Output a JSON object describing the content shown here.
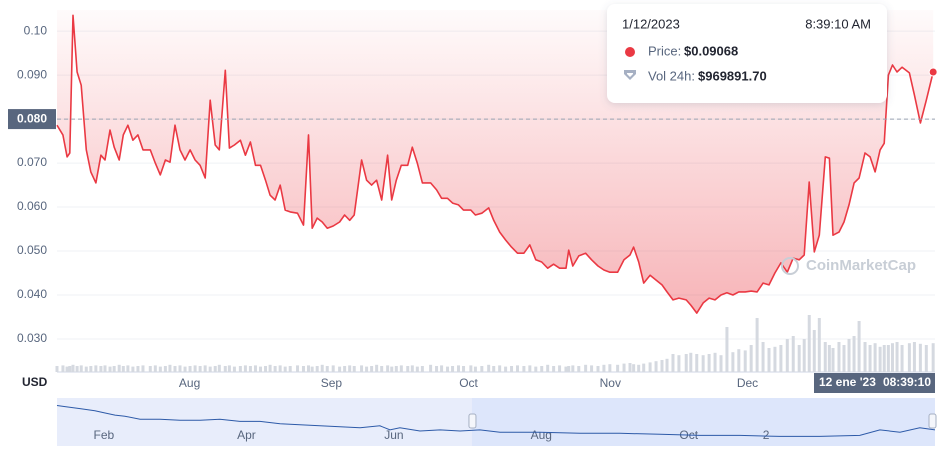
{
  "chart_data": {
    "type": "line",
    "series": [
      {
        "color": "#ea3943",
        "x": [
          2.0,
          3.3,
          4.2,
          4.8,
          5.5,
          6.4,
          7.3,
          8.4,
          9.4,
          10.5,
          11.6,
          12.5,
          13.6,
          14.5,
          15.6,
          16.5,
          17.5,
          18.6,
          19.7,
          20.8,
          22.4,
          23.5,
          24.6,
          25.7,
          26.7,
          27.8,
          28.9,
          30.0,
          31.1,
          32.2,
          33.3,
          34.4,
          35.5,
          36.6,
          37.5,
          38.8,
          39.7,
          40.8,
          42.1,
          43.2,
          44.3,
          45.4,
          46.5,
          47.6,
          48.6,
          49.7,
          50.8,
          51.9,
          53.0,
          54.6,
          55.9,
          57.0,
          57.8,
          58.9,
          60.0,
          61.1,
          62.4,
          63.8,
          64.9,
          66.0,
          67.0,
          68.6,
          69.7,
          70.8,
          71.9,
          73.0,
          74.3,
          75.2,
          76.2,
          77.3,
          78.7,
          79.7,
          80.8,
          81.9,
          83.7,
          85.0,
          86.1,
          87.4,
          88.5,
          89.8,
          90.9,
          92.5,
          93.5,
          94.9,
          96.4,
          97.5,
          98.8,
          100.1,
          101.4,
          102.7,
          104.1,
          105.4,
          106.7,
          108.0,
          109.3,
          110.6,
          111.9,
          113.3,
          113.9,
          114.8,
          116.1,
          117.6,
          118.9,
          120.3,
          121.6,
          122.9,
          124.6,
          126.0,
          127.3,
          128.1,
          129.2,
          130.3,
          131.7,
          133.0,
          134.3,
          135.4,
          136.7,
          138.0,
          139.6,
          140.6,
          141.9,
          143.3,
          144.6,
          145.9,
          147.2,
          148.5,
          149.8,
          151.1,
          152.5,
          153.8,
          155.1,
          156.4,
          157.7,
          159.0,
          160.3,
          161.7,
          163.0,
          164.3,
          165.4,
          166.5,
          167.6,
          168.7,
          170.0,
          170.9,
          171.7,
          173.0,
          174.1,
          175.2,
          176.3,
          177.4,
          178.7,
          179.8,
          180.9,
          182.0,
          182.9,
          183.8,
          184.7,
          185.7,
          186.8,
          188.4,
          189.5,
          190.8,
          192.1,
          193.6
        ],
        "values": [
          0.0786,
          0.0764,
          0.0714,
          0.0723,
          0.1036,
          0.0907,
          0.0877,
          0.073,
          0.068,
          0.0655,
          0.0718,
          0.0707,
          0.0775,
          0.0736,
          0.0707,
          0.0764,
          0.0786,
          0.0752,
          0.0764,
          0.073,
          0.073,
          0.07,
          0.0673,
          0.0707,
          0.0702,
          0.0786,
          0.073,
          0.0707,
          0.073,
          0.0707,
          0.0695,
          0.0666,
          0.0843,
          0.0741,
          0.073,
          0.0911,
          0.0734,
          0.0741,
          0.0752,
          0.0718,
          0.0748,
          0.0695,
          0.0695,
          0.0661,
          0.0627,
          0.0616,
          0.065,
          0.0593,
          0.0589,
          0.0586,
          0.0559,
          0.0764,
          0.0552,
          0.0575,
          0.0566,
          0.0552,
          0.0557,
          0.0566,
          0.0582,
          0.057,
          0.0582,
          0.0707,
          0.0661,
          0.065,
          0.0661,
          0.0616,
          0.0718,
          0.0616,
          0.0661,
          0.0695,
          0.0695,
          0.0736,
          0.07,
          0.0655,
          0.0655,
          0.0639,
          0.062,
          0.062,
          0.0609,
          0.0605,
          0.0593,
          0.0593,
          0.0582,
          0.0586,
          0.0598,
          0.057,
          0.0543,
          0.0525,
          0.0509,
          0.0495,
          0.0495,
          0.0514,
          0.048,
          0.0475,
          0.0461,
          0.047,
          0.0461,
          0.0461,
          0.0502,
          0.0466,
          0.0489,
          0.0495,
          0.048,
          0.0466,
          0.0457,
          0.0452,
          0.0452,
          0.048,
          0.0491,
          0.0509,
          0.0475,
          0.0427,
          0.0445,
          0.0434,
          0.0423,
          0.0407,
          0.0389,
          0.0393,
          0.0389,
          0.0377,
          0.0359,
          0.0382,
          0.0393,
          0.0389,
          0.04,
          0.0405,
          0.04,
          0.0407,
          0.0407,
          0.0409,
          0.0407,
          0.0427,
          0.0423,
          0.045,
          0.0473,
          0.0452,
          0.0484,
          0.048,
          0.0491,
          0.0657,
          0.0498,
          0.0536,
          0.0714,
          0.0711,
          0.0536,
          0.0543,
          0.0566,
          0.0605,
          0.0655,
          0.0666,
          0.0723,
          0.0714,
          0.068,
          0.073,
          0.0745,
          0.09,
          0.0923,
          0.0907,
          0.0918,
          0.0905,
          0.0855,
          0.0791,
          0.0843,
          0.0907
        ]
      }
    ],
    "volume": {
      "color": "#d5d9e0",
      "ylim": [
        0,
        100
      ],
      "values": [
        10,
        11,
        9,
        10,
        12,
        10,
        11,
        9,
        10,
        11,
        10,
        11,
        9,
        10,
        12,
        10,
        11,
        9,
        10,
        11,
        10,
        11,
        9,
        10,
        12,
        10,
        11,
        9,
        10,
        11,
        10,
        11,
        9,
        10,
        12,
        10,
        11,
        9,
        10,
        11,
        10,
        11,
        9,
        10,
        12,
        10,
        11,
        9,
        10,
        11,
        10,
        11,
        9,
        10,
        12,
        10,
        11,
        9,
        10,
        11,
        10,
        11,
        9,
        10,
        12,
        10,
        11,
        9,
        10,
        11,
        10,
        11,
        9,
        10,
        12,
        10,
        11,
        9,
        10,
        11,
        10,
        11,
        9,
        10,
        12,
        10,
        11,
        9,
        10,
        11,
        10,
        11,
        9,
        10,
        12,
        10,
        11,
        9,
        10,
        11,
        10,
        12,
        11,
        10,
        12,
        13,
        12,
        14,
        15,
        13,
        12,
        14,
        16,
        18,
        20,
        22,
        30,
        28,
        30,
        32,
        30,
        28,
        30,
        32,
        28,
        75,
        33,
        38,
        36,
        45,
        90,
        50,
        40,
        42,
        45,
        55,
        60,
        45,
        55,
        95,
        70,
        90,
        50,
        45,
        40,
        50,
        45,
        55,
        60,
        85,
        50,
        45,
        48,
        42,
        45,
        45,
        48,
        50,
        45,
        48,
        50,
        47,
        45,
        48
      ]
    },
    "xlim": [
      2,
      194
    ],
    "xticks": [
      {
        "value": 31,
        "label": "Aug"
      },
      {
        "value": 62,
        "label": "Sep"
      },
      {
        "value": 92,
        "label": "Oct"
      },
      {
        "value": 123,
        "label": "Nov"
      },
      {
        "value": 153,
        "label": "Dec"
      }
    ],
    "ylim": [
      0.0225,
      0.1048
    ],
    "yticks": [
      {
        "value": 0.1,
        "label": "0.10"
      },
      {
        "value": 0.09,
        "label": "0.090"
      },
      {
        "value": 0.08,
        "label": "0.080"
      },
      {
        "value": 0.07,
        "label": "0.070"
      },
      {
        "value": 0.06,
        "label": "0.060"
      },
      {
        "value": 0.05,
        "label": "0.050"
      },
      {
        "value": 0.04,
        "label": "0.040"
      },
      {
        "value": 0.03,
        "label": "0.030"
      }
    ],
    "grid": true,
    "y_axis_label": "USD",
    "crosshair": {
      "y": 0.08,
      "date_label": "12 ene '23",
      "time_label": "08:39:10"
    },
    "tooltip": {
      "date": "1/12/2023",
      "time": "8:39:10 AM",
      "price_label": "Price:",
      "price": "$0.09068",
      "volume_label": "Vol 24h:",
      "volume": "$969891.70"
    },
    "watermark": "CoinMarketCap",
    "navigator": {
      "color": "#2d5aa8",
      "xlim": [
        11.6,
        374.9
      ],
      "ylim": [
        0.02,
        0.25
      ],
      "xticks": [
        {
          "value": 31,
          "label": "Feb"
        },
        {
          "value": 90,
          "label": "Apr"
        },
        {
          "value": 151,
          "label": "Jun"
        },
        {
          "value": 212,
          "label": "Aug"
        },
        {
          "value": 273,
          "label": "Oct"
        },
        {
          "value": 305,
          "label": "2"
        }
      ],
      "selection": [
        183.3,
        374.9
      ],
      "x": [
        11.6,
        14.9,
        21.1,
        27.3,
        31.5,
        35.6,
        39.7,
        46.0,
        54.2,
        62.5,
        70.8,
        79.0,
        87.3,
        95.6,
        103.9,
        112.1,
        120.4,
        128.7,
        137.0,
        145.2,
        149.4,
        153.5,
        161.8,
        170.1,
        178.4,
        186.6,
        194.9,
        211.4,
        228.0,
        244.5,
        261.1,
        277.6,
        294.2,
        310.7,
        327.2,
        343.8,
        352.1,
        360.4,
        368.6,
        374.9
      ],
      "values": [
        0.214,
        0.209,
        0.199,
        0.189,
        0.178,
        0.168,
        0.163,
        0.148,
        0.148,
        0.143,
        0.143,
        0.148,
        0.138,
        0.138,
        0.127,
        0.122,
        0.117,
        0.112,
        0.107,
        0.117,
        0.097,
        0.107,
        0.092,
        0.097,
        0.092,
        0.097,
        0.086,
        0.086,
        0.081,
        0.081,
        0.076,
        0.071,
        0.071,
        0.066,
        0.066,
        0.071,
        0.097,
        0.086,
        0.107,
        0.097
      ]
    }
  }
}
